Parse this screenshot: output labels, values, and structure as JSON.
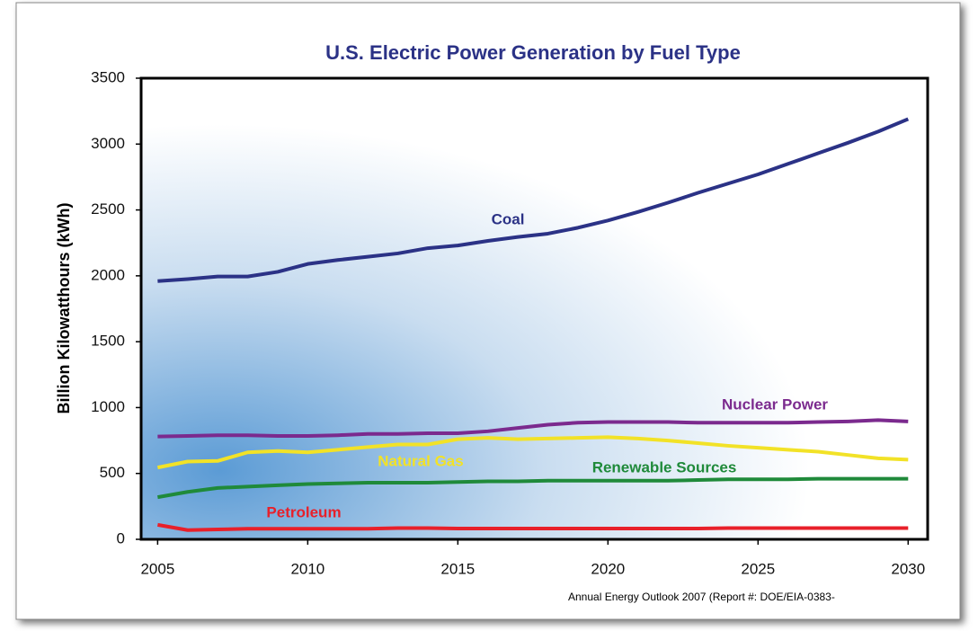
{
  "chart_data": {
    "type": "line",
    "title": "U.S. Electric Power Generation by Fuel Type",
    "y_label": "Billion Kilowatthours (kWh)",
    "source": "Annual Energy Outlook 2007 (Report #: DOE/EIA-0383-",
    "x": [
      2005,
      2006,
      2007,
      2008,
      2009,
      2010,
      2011,
      2012,
      2013,
      2014,
      2015,
      2016,
      2017,
      2018,
      2019,
      2020,
      2021,
      2022,
      2023,
      2024,
      2025,
      2026,
      2027,
      2028,
      2029,
      2030
    ],
    "xlim": [
      2004.45,
      2030.65
    ],
    "xticks": [
      2005,
      2010,
      2015,
      2020,
      2025,
      2030
    ],
    "ylim": [
      0,
      3500
    ],
    "yticks": [
      0,
      500,
      1000,
      1500,
      2000,
      2500,
      3000,
      3500
    ],
    "series": [
      {
        "name": "Coal",
        "color": "#2b3286",
        "values": [
          1960,
          1975,
          1995,
          1995,
          2030,
          2090,
          2120,
          2145,
          2170,
          2210,
          2230,
          2265,
          2295,
          2320,
          2365,
          2420,
          2485,
          2555,
          2630,
          2700,
          2770,
          2850,
          2930,
          3010,
          3095,
          3190
        ]
      },
      {
        "name": "Nuclear Power",
        "color": "#7b2a8e",
        "values": [
          780,
          785,
          790,
          790,
          785,
          785,
          790,
          800,
          800,
          805,
          805,
          820,
          845,
          870,
          885,
          890,
          890,
          890,
          885,
          885,
          885,
          885,
          890,
          895,
          905,
          895
        ]
      },
      {
        "name": "Natural Gas",
        "color": "#f2e227",
        "values": [
          545,
          590,
          595,
          660,
          670,
          660,
          680,
          700,
          720,
          720,
          760,
          770,
          760,
          765,
          770,
          775,
          765,
          750,
          730,
          710,
          695,
          680,
          665,
          640,
          615,
          605
        ]
      },
      {
        "name": "Renewable Sources",
        "color": "#1f8a3a",
        "values": [
          320,
          360,
          390,
          400,
          410,
          420,
          425,
          430,
          430,
          430,
          435,
          440,
          440,
          445,
          445,
          445,
          445,
          445,
          450,
          455,
          455,
          455,
          460,
          460,
          460,
          460
        ]
      },
      {
        "name": "Petroleum",
        "color": "#e8202a",
        "values": [
          110,
          70,
          75,
          80,
          80,
          80,
          80,
          80,
          85,
          85,
          82,
          82,
          82,
          82,
          82,
          82,
          82,
          82,
          82,
          85,
          85,
          85,
          85,
          85,
          85,
          85
        ]
      }
    ]
  }
}
